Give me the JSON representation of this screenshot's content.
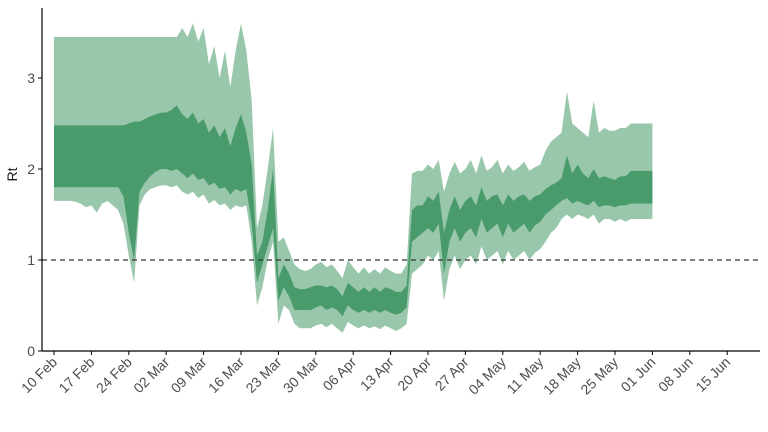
{
  "chart_data": {
    "type": "area",
    "xlabel": "",
    "ylabel": "Rt",
    "ylim": [
      0,
      3.8
    ],
    "y_ticks": [
      0,
      1,
      2,
      3
    ],
    "x_ticks": [
      "10 Feb",
      "17 Feb",
      "24 Feb",
      "02 Mar",
      "09 Mar",
      "16 Mar",
      "23 Mar",
      "30 Mar",
      "06 Apr",
      "13 Apr",
      "20 Apr",
      "27 Apr",
      "04 May",
      "11 May",
      "18 May",
      "25 May",
      "01 Jun",
      "08 Jun",
      "15 Jun"
    ],
    "reference_line": {
      "y": 1,
      "style": "dashed"
    },
    "x_start": "2020-02-10",
    "series": [
      {
        "values_outer_lower": [
          1.65,
          1.65,
          1.65,
          1.65,
          1.64,
          1.62,
          1.58,
          1.6,
          1.52,
          1.62,
          1.65,
          1.6,
          1.55,
          1.4,
          1.05,
          0.75,
          1.6,
          1.72,
          1.78,
          1.8,
          1.82,
          1.82,
          1.8,
          1.82,
          1.75,
          1.72,
          1.75,
          1.68,
          1.72,
          1.62,
          1.66,
          1.6,
          1.62,
          1.55,
          1.6,
          1.58,
          1.6,
          1.2,
          0.5,
          0.7,
          1.0,
          1.2,
          0.3,
          0.5,
          0.45,
          0.3,
          0.25,
          0.25,
          0.25,
          0.28,
          0.3,
          0.26,
          0.3,
          0.25,
          0.2,
          0.32,
          0.28,
          0.25,
          0.28,
          0.25,
          0.27,
          0.24,
          0.28,
          0.25,
          0.22,
          0.25,
          0.3,
          0.85,
          0.9,
          0.95,
          1.05,
          1.0,
          1.1,
          0.55,
          0.9,
          1.05,
          0.9,
          1.0,
          1.05,
          0.95,
          1.15,
          1.0,
          1.05,
          1.1,
          0.95,
          1.1,
          1.0,
          1.05,
          1.1,
          1.0,
          1.08,
          1.12,
          1.2,
          1.3,
          1.35,
          1.45,
          1.5,
          1.45,
          1.5,
          1.48,
          1.45,
          1.5,
          1.4,
          1.45,
          1.45,
          1.42,
          1.45,
          1.42,
          1.45,
          1.45,
          1.45,
          1.45,
          1.45
        ],
        "values_inner_lower": [
          1.8,
          1.8,
          1.8,
          1.8,
          1.8,
          1.8,
          1.8,
          1.8,
          1.8,
          1.8,
          1.8,
          1.8,
          1.8,
          1.7,
          1.3,
          1.0,
          1.75,
          1.85,
          1.92,
          1.97,
          2.0,
          2.0,
          1.98,
          2.0,
          1.95,
          1.9,
          1.95,
          1.88,
          1.9,
          1.82,
          1.85,
          1.78,
          1.8,
          1.72,
          1.78,
          1.75,
          1.78,
          1.4,
          0.75,
          0.95,
          1.15,
          1.35,
          0.55,
          0.7,
          0.6,
          0.45,
          0.45,
          0.45,
          0.45,
          0.48,
          0.5,
          0.45,
          0.48,
          0.45,
          0.38,
          0.5,
          0.45,
          0.42,
          0.45,
          0.42,
          0.45,
          0.42,
          0.45,
          0.42,
          0.4,
          0.42,
          0.48,
          1.2,
          1.25,
          1.3,
          1.35,
          1.3,
          1.4,
          0.85,
          1.2,
          1.35,
          1.2,
          1.3,
          1.35,
          1.25,
          1.45,
          1.3,
          1.35,
          1.4,
          1.25,
          1.4,
          1.3,
          1.35,
          1.4,
          1.3,
          1.38,
          1.42,
          1.5,
          1.55,
          1.6,
          1.65,
          1.68,
          1.62,
          1.65,
          1.62,
          1.6,
          1.65,
          1.58,
          1.6,
          1.6,
          1.58,
          1.6,
          1.6,
          1.62,
          1.62,
          1.62,
          1.62,
          1.62
        ],
        "values_inner_upper": [
          2.48,
          2.48,
          2.48,
          2.48,
          2.48,
          2.48,
          2.48,
          2.48,
          2.48,
          2.48,
          2.48,
          2.48,
          2.48,
          2.48,
          2.5,
          2.52,
          2.52,
          2.55,
          2.58,
          2.6,
          2.62,
          2.62,
          2.65,
          2.7,
          2.6,
          2.55,
          2.62,
          2.5,
          2.55,
          2.4,
          2.48,
          2.35,
          2.45,
          2.25,
          2.45,
          2.6,
          2.4,
          2.05,
          1.05,
          1.2,
          1.55,
          2.0,
          0.8,
          0.95,
          0.85,
          0.7,
          0.68,
          0.68,
          0.7,
          0.72,
          0.72,
          0.7,
          0.72,
          0.68,
          0.6,
          0.75,
          0.7,
          0.65,
          0.7,
          0.65,
          0.7,
          0.65,
          0.7,
          0.68,
          0.65,
          0.65,
          0.72,
          1.55,
          1.6,
          1.6,
          1.7,
          1.65,
          1.75,
          1.3,
          1.55,
          1.7,
          1.55,
          1.65,
          1.7,
          1.6,
          1.8,
          1.65,
          1.7,
          1.72,
          1.6,
          1.72,
          1.65,
          1.7,
          1.72,
          1.65,
          1.7,
          1.72,
          1.78,
          1.82,
          1.85,
          1.9,
          2.15,
          1.95,
          2.05,
          1.95,
          1.9,
          2.0,
          1.9,
          1.92,
          1.9,
          1.88,
          1.92,
          1.92,
          1.98,
          1.98,
          1.98,
          1.98,
          1.98
        ],
        "values_outer_upper": [
          3.45,
          3.45,
          3.45,
          3.45,
          3.45,
          3.45,
          3.45,
          3.45,
          3.45,
          3.45,
          3.45,
          3.45,
          3.45,
          3.45,
          3.45,
          3.45,
          3.45,
          3.45,
          3.45,
          3.45,
          3.45,
          3.45,
          3.45,
          3.45,
          3.55,
          3.45,
          3.6,
          3.4,
          3.55,
          3.15,
          3.35,
          3.0,
          3.3,
          2.9,
          3.3,
          3.6,
          3.3,
          2.75,
          1.35,
          1.6,
          2.0,
          2.45,
          1.2,
          1.25,
          1.1,
          0.95,
          0.9,
          0.88,
          0.9,
          0.95,
          0.98,
          0.92,
          0.95,
          0.88,
          0.8,
          1.0,
          0.92,
          0.85,
          0.92,
          0.85,
          0.9,
          0.85,
          0.92,
          0.88,
          0.85,
          0.85,
          0.95,
          1.95,
          1.98,
          1.98,
          2.05,
          2.0,
          2.1,
          1.75,
          1.95,
          2.08,
          1.95,
          2.0,
          2.1,
          1.95,
          2.15,
          1.98,
          2.02,
          2.1,
          1.95,
          2.05,
          1.98,
          2.02,
          2.08,
          1.98,
          2.02,
          2.05,
          2.2,
          2.3,
          2.35,
          2.4,
          2.85,
          2.5,
          2.45,
          2.4,
          2.35,
          2.75,
          2.4,
          2.45,
          2.42,
          2.42,
          2.45,
          2.45,
          2.5,
          2.5,
          2.5,
          2.5,
          2.5
        ]
      }
    ],
    "colors": {
      "outer_band": "#99c7ab",
      "inner_band": "#4a9b6c",
      "reference_line": "#333333",
      "axis": "#000000",
      "tick_label": "#4d4d4d"
    },
    "grid": false,
    "legend": "none"
  }
}
